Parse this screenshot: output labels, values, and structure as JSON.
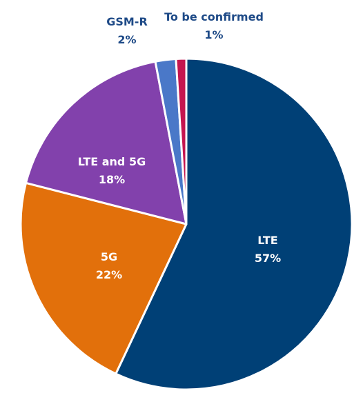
{
  "chart_data": {
    "type": "pie",
    "slices": [
      {
        "label": "LTE",
        "value": 57,
        "display": "57%",
        "color": "#004076",
        "label_color": "#ffffff",
        "label_placement": "inside"
      },
      {
        "label": "5G",
        "value": 22,
        "display": "22%",
        "color": "#e2700b",
        "label_color": "#ffffff",
        "label_placement": "inside"
      },
      {
        "label": "LTE and 5G",
        "value": 18,
        "display": "18%",
        "color": "#8241ac",
        "label_color": "#ffffff",
        "label_placement": "inside"
      },
      {
        "label": "GSM-R",
        "value": 2,
        "display": "2%",
        "color": "#4a78c8",
        "label_color": "#1e4a87",
        "label_placement": "outside"
      },
      {
        "label": "To be confirmed",
        "value": 1,
        "display": "1%",
        "color": "#c5154f",
        "label_color": "#1e4a87",
        "label_placement": "outside"
      }
    ],
    "start": "12 o'clock",
    "direction": "clockwise",
    "slice_border_color": "#ffffff",
    "legend": "none"
  }
}
